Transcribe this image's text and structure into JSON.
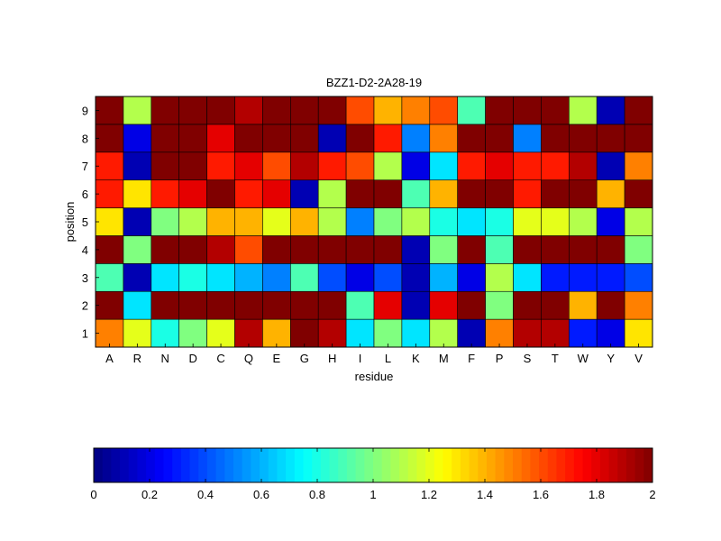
{
  "chart_data": {
    "type": "heatmap",
    "title": "BZZ1-D2-2A28-19",
    "xlabel": "residue",
    "ylabel": "position",
    "x_categories": [
      "A",
      "R",
      "N",
      "D",
      "C",
      "Q",
      "E",
      "G",
      "H",
      "I",
      "L",
      "K",
      "M",
      "F",
      "P",
      "S",
      "T",
      "W",
      "Y",
      "V"
    ],
    "y_categories": [
      "1",
      "2",
      "3",
      "4",
      "5",
      "6",
      "7",
      "8",
      "9"
    ],
    "values": [
      [
        1.5,
        1.2,
        0.8,
        1.0,
        1.2,
        1.9,
        1.4,
        2.0,
        1.9,
        0.7,
        1.0,
        0.7,
        1.1,
        0.1,
        1.5,
        1.9,
        1.9,
        0.3,
        0.2,
        1.3
      ],
      [
        2.0,
        0.7,
        2.0,
        2.0,
        2.0,
        2.0,
        2.0,
        2.0,
        2.0,
        0.9,
        1.8,
        0.1,
        1.8,
        2.0,
        1.0,
        2.0,
        2.0,
        1.4,
        2.0,
        1.5
      ],
      [
        0.9,
        0.1,
        0.7,
        0.8,
        0.7,
        0.6,
        0.5,
        0.9,
        0.4,
        0.2,
        0.4,
        0.1,
        0.6,
        0.2,
        1.1,
        0.7,
        0.3,
        0.3,
        0.3,
        0.4
      ],
      [
        2.0,
        1.0,
        2.0,
        2.0,
        1.9,
        1.6,
        2.0,
        2.0,
        2.0,
        2.0,
        2.0,
        0.1,
        1.0,
        2.0,
        0.9,
        2.0,
        2.0,
        2.0,
        2.0,
        1.0
      ],
      [
        1.3,
        0.1,
        1.0,
        1.1,
        1.4,
        1.4,
        1.2,
        1.4,
        1.1,
        0.5,
        1.0,
        1.1,
        0.8,
        0.7,
        0.8,
        1.2,
        1.2,
        1.1,
        0.2,
        1.1
      ],
      [
        1.7,
        1.3,
        1.7,
        1.8,
        2.0,
        1.7,
        1.8,
        0.1,
        1.1,
        2.0,
        2.0,
        0.9,
        1.4,
        2.0,
        2.0,
        1.7,
        2.0,
        2.0,
        1.4,
        2.0
      ],
      [
        1.7,
        0.1,
        2.0,
        2.0,
        1.7,
        1.8,
        1.6,
        1.9,
        1.7,
        1.6,
        1.1,
        0.2,
        0.7,
        1.7,
        1.8,
        1.7,
        1.7,
        1.9,
        0.1,
        1.5
      ],
      [
        2.0,
        0.2,
        2.0,
        2.0,
        1.8,
        2.0,
        2.0,
        2.0,
        0.1,
        2.0,
        1.7,
        0.5,
        1.5,
        2.0,
        2.0,
        0.5,
        2.0,
        2.0,
        2.0,
        2.0
      ],
      [
        2.0,
        1.1,
        2.0,
        2.0,
        2.0,
        1.9,
        2.0,
        2.0,
        2.0,
        1.6,
        1.4,
        1.5,
        1.6,
        0.9,
        2.0,
        2.0,
        2.0,
        1.1,
        0.1,
        2.0
      ]
    ],
    "colorbar": {
      "min": 0,
      "max": 2,
      "ticks": [
        "0",
        "0.2",
        "0.4",
        "0.6",
        "0.8",
        "1",
        "1.2",
        "1.4",
        "1.6",
        "1.8",
        "2"
      ],
      "colormap": "jet"
    },
    "grid": false
  }
}
